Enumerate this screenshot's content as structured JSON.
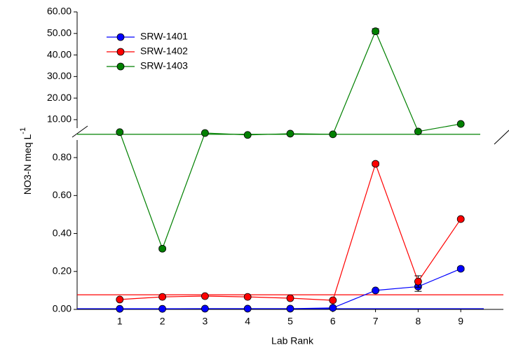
{
  "chart_data": {
    "type": "line",
    "x_label": "Lab Rank",
    "y_label": "NO3-N meq L",
    "y_label_superscript": "-1",
    "x": [
      1,
      2,
      3,
      4,
      5,
      6,
      7,
      8,
      9
    ],
    "xlim": [
      0,
      10
    ],
    "xticks": [
      1,
      2,
      3,
      4,
      5,
      6,
      7,
      8,
      9
    ],
    "ylim_upper": [
      2.5,
      60
    ],
    "yticks_upper": [
      {
        "value": 10,
        "label": "10.00"
      },
      {
        "value": 20,
        "label": "20.00"
      },
      {
        "value": 30,
        "label": "30.00"
      },
      {
        "value": 40,
        "label": "40.00"
      },
      {
        "value": 50,
        "label": "50.00"
      },
      {
        "value": 60,
        "label": "60.00"
      }
    ],
    "ylim_lower": [
      0,
      0.9
    ],
    "yticks_lower": [
      {
        "value": 0,
        "label": "0.00"
      },
      {
        "value": 0.2,
        "label": "0.20"
      },
      {
        "value": 0.4,
        "label": "0.40"
      },
      {
        "value": 0.6,
        "label": "0.60"
      },
      {
        "value": 0.8,
        "label": "0.80"
      }
    ],
    "legend": "upper left",
    "series": [
      {
        "name": "SRW-1401",
        "color": "#0000ff",
        "reference": 0.004,
        "values": [
          0.003,
          0.003,
          0.004,
          0.004,
          0.004,
          0.008,
          0.1,
          0.12,
          0.214
        ],
        "errors": [
          0.001,
          0.001,
          0.001,
          0.001,
          0.001,
          0.001,
          0.004,
          0.025,
          0.008
        ]
      },
      {
        "name": "SRW-1402",
        "color": "#ff0000",
        "reference": 0.077,
        "values": [
          0.052,
          0.066,
          0.07,
          0.066,
          0.059,
          0.048,
          0.767,
          0.147,
          0.476
        ],
        "errors": [
          0.005,
          0.004,
          0.004,
          0.004,
          0.004,
          0.003,
          0.01,
          0.03,
          0.006
        ]
      },
      {
        "name": "SRW-1403",
        "color": "#008000",
        "reference": 3.2,
        "values": [
          4.2,
          0.32,
          3.8,
          2.9,
          3.5,
          3.2,
          51,
          4.5,
          8.0
        ],
        "errors": [
          0.3,
          0.008,
          0.3,
          0.3,
          0.3,
          0.3,
          1.2,
          0.3,
          0.4
        ]
      }
    ]
  }
}
